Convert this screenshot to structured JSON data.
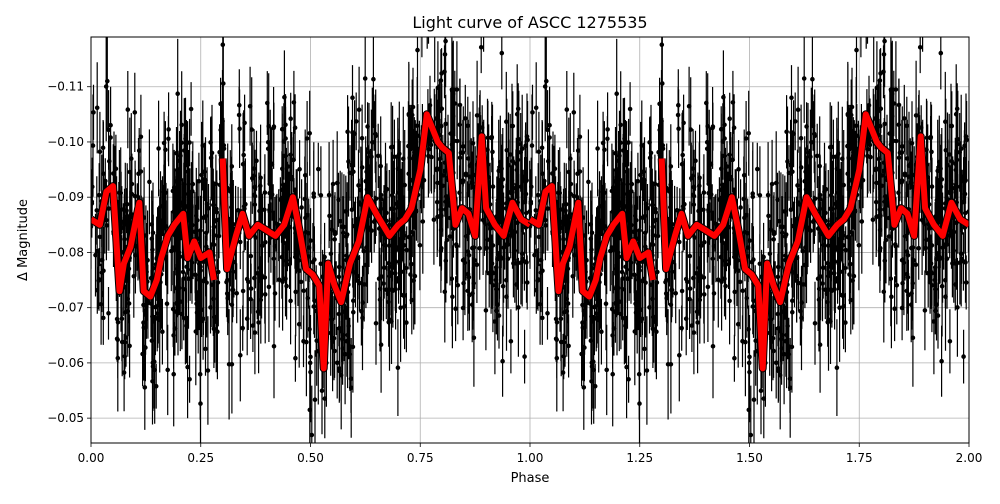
{
  "chart_data": {
    "type": "scatter",
    "title": "Light curve of ASCC 1275535",
    "xlabel": "Phase",
    "ylabel": "Δ Magnitude",
    "xlim": [
      0.0,
      2.0
    ],
    "ylim": [
      -0.0455,
      -0.119
    ],
    "y_inverted": true,
    "grid": true,
    "xticks": [
      0.0,
      0.25,
      0.5,
      0.75,
      1.0,
      1.25,
      1.5,
      1.75,
      2.0
    ],
    "xtick_labels": [
      "0.00",
      "0.25",
      "0.50",
      "0.75",
      "1.00",
      "1.25",
      "1.50",
      "1.75",
      "2.00"
    ],
    "yticks": [
      -0.11,
      -0.1,
      -0.09,
      -0.08,
      -0.07,
      -0.06,
      -0.05
    ],
    "ytick_labels": [
      "−0.11",
      "−0.10",
      "−0.09",
      "−0.08",
      "−0.07",
      "−0.06",
      "−0.05"
    ],
    "series": [
      {
        "name": "observations",
        "style": "errorbar points",
        "color": "#000000",
        "note": "dense scatter of measurements with vertical error bars, repeated over two phase cycles"
      },
      {
        "name": "binned light curve",
        "style": "thick line",
        "color": "#ff0000",
        "x": [
          0.0,
          0.02,
          0.035,
          0.05,
          0.065,
          0.075,
          0.09,
          0.11,
          0.12,
          0.135,
          0.15,
          0.16,
          0.175,
          0.19,
          0.21,
          0.22,
          0.235,
          0.25,
          0.27,
          0.28,
          0.3,
          0.31,
          0.33,
          0.345,
          0.36,
          0.38,
          0.4,
          0.42,
          0.44,
          0.46,
          0.475,
          0.49,
          0.505,
          0.52,
          0.53,
          0.54,
          0.555,
          0.57,
          0.59,
          0.61,
          0.63,
          0.65,
          0.665,
          0.68,
          0.7,
          0.715,
          0.73,
          0.75,
          0.765,
          0.775,
          0.79,
          0.8,
          0.815,
          0.83,
          0.845,
          0.86,
          0.875,
          0.89,
          0.9,
          0.92,
          0.94,
          0.96,
          0.98,
          1.0
        ],
        "y": [
          -0.086,
          -0.085,
          -0.091,
          -0.092,
          -0.073,
          -0.078,
          -0.081,
          -0.089,
          -0.073,
          -0.072,
          -0.075,
          -0.079,
          -0.083,
          -0.085,
          -0.087,
          -0.079,
          -0.082,
          -0.079,
          -0.08,
          -0.075,
          -0.097,
          -0.077,
          -0.083,
          -0.087,
          -0.083,
          -0.085,
          -0.084,
          -0.083,
          -0.085,
          -0.09,
          -0.084,
          -0.077,
          -0.076,
          -0.074,
          -0.059,
          -0.078,
          -0.074,
          -0.071,
          -0.078,
          -0.082,
          -0.09,
          -0.087,
          -0.085,
          -0.083,
          -0.085,
          -0.086,
          -0.088,
          -0.095,
          -0.105,
          -0.103,
          -0.1,
          -0.099,
          -0.098,
          -0.085,
          -0.088,
          -0.087,
          -0.083,
          -0.101,
          -0.088,
          -0.085,
          -0.083,
          -0.089,
          -0.086,
          -0.085
        ]
      }
    ]
  }
}
